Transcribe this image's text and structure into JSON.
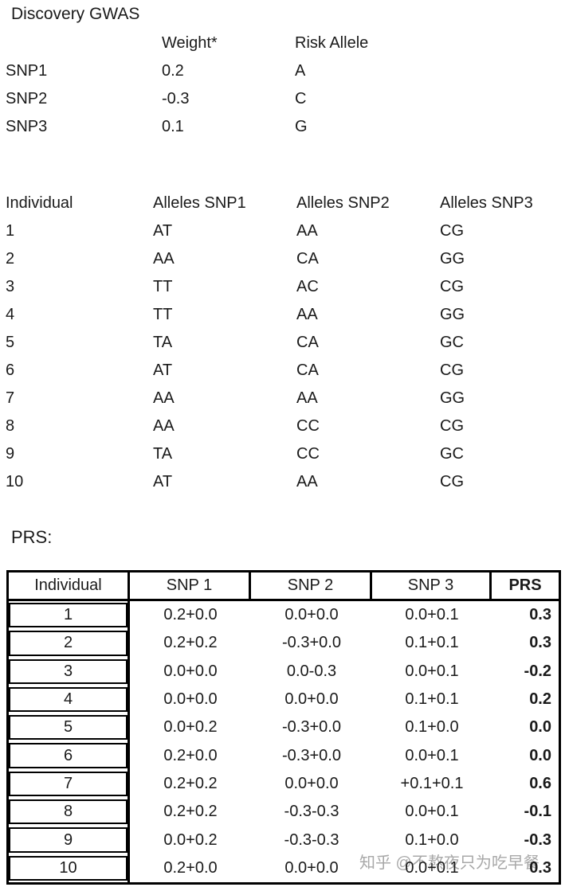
{
  "title": "Discovery GWAS",
  "weights_table": {
    "headers": {
      "weight": "Weight*",
      "risk_allele": "Risk Allele"
    },
    "rows": [
      {
        "snp": "SNP1",
        "weight": "0.2",
        "risk_allele": "A"
      },
      {
        "snp": "SNP2",
        "weight": "-0.3",
        "risk_allele": "C"
      },
      {
        "snp": "SNP3",
        "weight": "0.1",
        "risk_allele": "G"
      }
    ]
  },
  "genotypes_table": {
    "headers": {
      "individual": "Individual",
      "snp1": "Alleles SNP1",
      "snp2": "Alleles SNP2",
      "snp3": "Alleles SNP3"
    },
    "rows": [
      {
        "individual": "1",
        "snp1": "AT",
        "snp2": "AA",
        "snp3": "CG"
      },
      {
        "individual": "2",
        "snp1": "AA",
        "snp2": "CA",
        "snp3": "GG"
      },
      {
        "individual": "3",
        "snp1": "TT",
        "snp2": "AC",
        "snp3": "CG"
      },
      {
        "individual": "4",
        "snp1": "TT",
        "snp2": "AA",
        "snp3": "GG"
      },
      {
        "individual": "5",
        "snp1": "TA",
        "snp2": "CA",
        "snp3": "GC"
      },
      {
        "individual": "6",
        "snp1": "AT",
        "snp2": "CA",
        "snp3": "CG"
      },
      {
        "individual": "7",
        "snp1": "AA",
        "snp2": "AA",
        "snp3": "GG"
      },
      {
        "individual": "8",
        "snp1": "AA",
        "snp2": "CC",
        "snp3": "CG"
      },
      {
        "individual": "9",
        "snp1": "TA",
        "snp2": "CC",
        "snp3": "GC"
      },
      {
        "individual": "10",
        "snp1": "AT",
        "snp2": "AA",
        "snp3": "CG"
      }
    ]
  },
  "prs_label": "PRS:",
  "prs_table": {
    "headers": {
      "individual": "Individual",
      "snp1": "SNP 1",
      "snp2": "SNP 2",
      "snp3": "SNP 3",
      "prs": "PRS"
    },
    "rows": [
      {
        "individual": "1",
        "snp1": "0.2+0.0",
        "snp2": "0.0+0.0",
        "snp3": "0.0+0.1",
        "prs": "0.3"
      },
      {
        "individual": "2",
        "snp1": "0.2+0.2",
        "snp2": "-0.3+0.0",
        "snp3": "0.1+0.1",
        "prs": "0.3"
      },
      {
        "individual": "3",
        "snp1": "0.0+0.0",
        "snp2": "0.0-0.3",
        "snp3": "0.0+0.1",
        "prs": "-0.2"
      },
      {
        "individual": "4",
        "snp1": "0.0+0.0",
        "snp2": "0.0+0.0",
        "snp3": "0.1+0.1",
        "prs": "0.2"
      },
      {
        "individual": "5",
        "snp1": "0.0+0.2",
        "snp2": "-0.3+0.0",
        "snp3": "0.1+0.0",
        "prs": "0.0"
      },
      {
        "individual": "6",
        "snp1": "0.2+0.0",
        "snp2": "-0.3+0.0",
        "snp3": "0.0+0.1",
        "prs": "0.0"
      },
      {
        "individual": "7",
        "snp1": "0.2+0.2",
        "snp2": "0.0+0.0",
        "snp3": "+0.1+0.1",
        "prs": "0.6"
      },
      {
        "individual": "8",
        "snp1": "0.2+0.2",
        "snp2": "-0.3-0.3",
        "snp3": "0.0+0.1",
        "prs": "-0.1"
      },
      {
        "individual": "9",
        "snp1": "0.0+0.2",
        "snp2": "-0.3-0.3",
        "snp3": "0.1+0.0",
        "prs": "-0.3"
      },
      {
        "individual": "10",
        "snp1": "0.2+0.0",
        "snp2": "0.0+0.0",
        "snp3": "0.0+0.1",
        "prs": "0.3"
      }
    ]
  },
  "watermark": "知乎 @不熬夜只为吃早餐",
  "colors": {
    "text": "#1a1a1a",
    "border": "#000000",
    "watermark": "#a8a8a8"
  }
}
